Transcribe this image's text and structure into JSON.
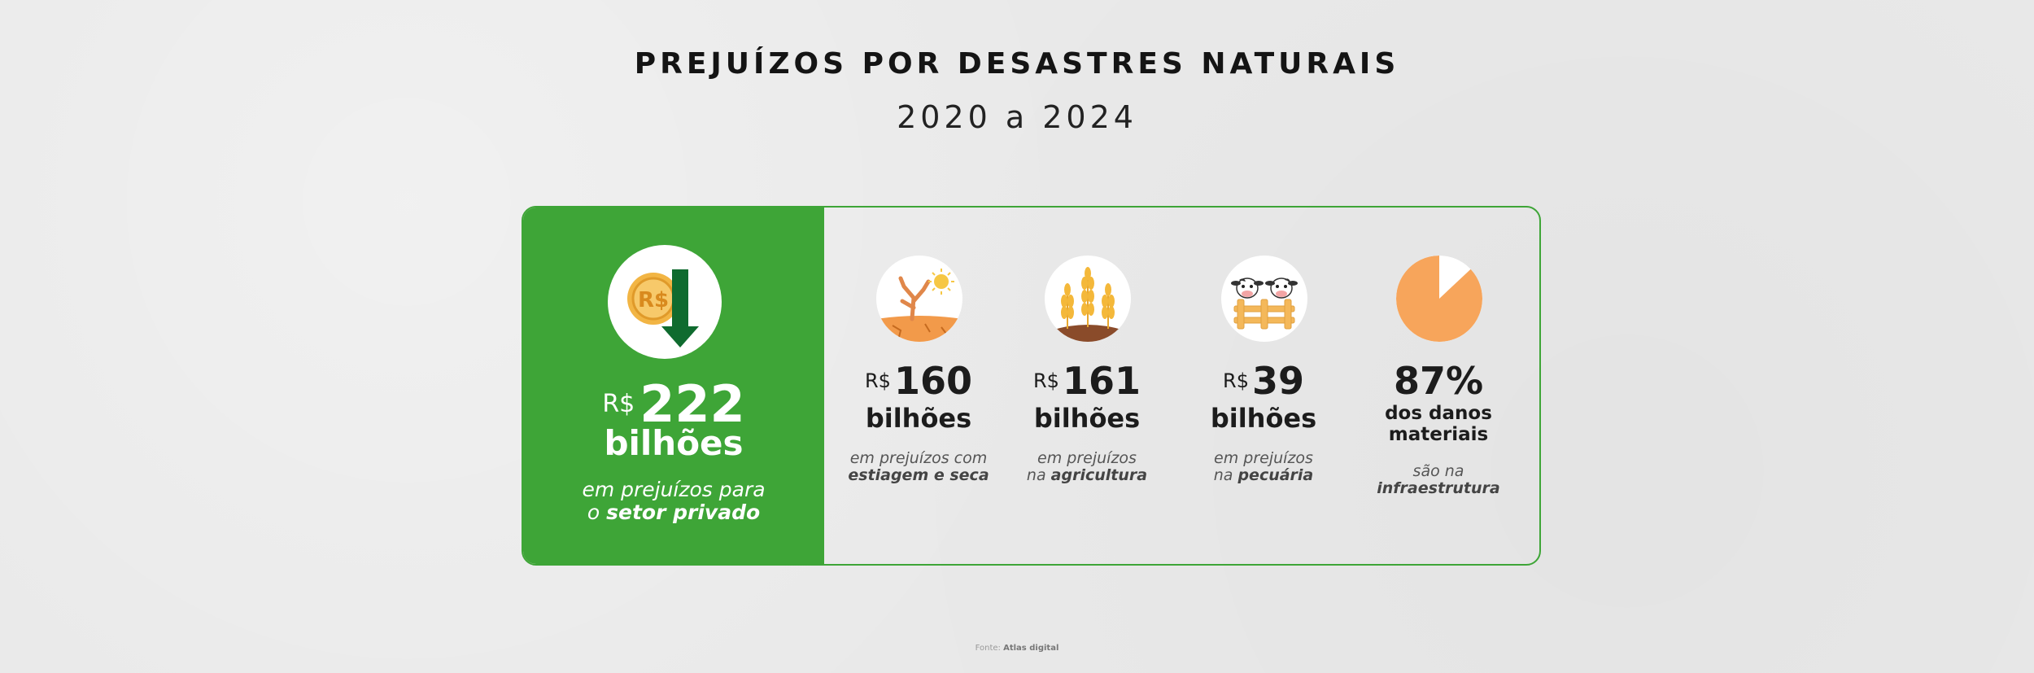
{
  "header": {
    "title": "PREJUÍZOS POR DESASTRES NATURAIS",
    "subtitle": "2020 a 2024"
  },
  "highlight": {
    "icon": "money-down-arrow-icon",
    "currency": "R$",
    "amount": "222",
    "unit": "bilhões",
    "desc_prefix": "em prejuízos para",
    "desc_line2_prefix": "o ",
    "desc_emphasis": "setor privado"
  },
  "stats": [
    {
      "icon": "drought-tree-icon",
      "currency": "R$",
      "amount": "160",
      "unit": "bilhões",
      "desc_line1": "em prejuízos com",
      "desc_line2_prefix": "",
      "desc_emphasis": "estiagem e seca"
    },
    {
      "icon": "wheat-icon",
      "currency": "R$",
      "amount": "161",
      "unit": "bilhões",
      "desc_line1": "em prejuízos",
      "desc_line2_prefix": "na ",
      "desc_emphasis": "agricultura"
    },
    {
      "icon": "cows-fence-icon",
      "currency": "R$",
      "amount": "39",
      "unit": "bilhões",
      "desc_line1": "em prejuízos",
      "desc_line2_prefix": "na ",
      "desc_emphasis": "pecuária"
    },
    {
      "icon": "pie-percent-icon",
      "percent": "87%",
      "percent_value": 87,
      "unit_line1": "dos danos",
      "unit_line2": "materiais",
      "desc_line1": "são na",
      "desc_line2_prefix": "",
      "desc_emphasis": "infraestrutura"
    }
  ],
  "footer": {
    "source_label": "Fonte:",
    "source_name": "Atlas digital"
  },
  "colors": {
    "green": "#3ea537",
    "dark_green": "#0f6b2f",
    "orange": "#f7a55b",
    "coin": "#f2b544"
  }
}
